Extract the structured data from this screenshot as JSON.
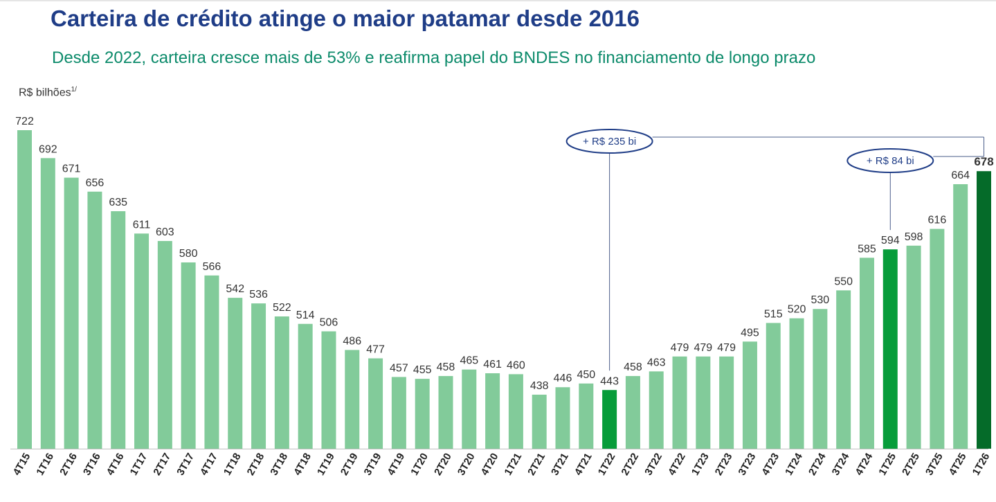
{
  "header": {
    "title": "Carteira de crédito atinge o maior patamar desde 2016",
    "subtitle": "Desde 2022, carteira cresce mais de 53% e reafirma papel do BNDES no financiamento de longo prazo",
    "unit_label": "R$ bilhões",
    "unit_footnote": "1/"
  },
  "colors": {
    "bar_default": "#82cb9a",
    "bar_highlight": "#079c3a",
    "bar_last": "#056b29",
    "annotation": "#1f3d87"
  },
  "chart_data": {
    "type": "bar",
    "title": "Carteira de crédito atinge o maior patamar desde 2016",
    "subtitle": "Desde 2022, carteira cresce mais de 53% e reafirma papel do BNDES no financiamento de longo prazo",
    "ylabel": "R$ bilhões",
    "xlabel": "",
    "categories": [
      "4T15",
      "1T16",
      "2T16",
      "3T16",
      "4T16",
      "1T17",
      "2T17",
      "3T17",
      "4T17",
      "1T18",
      "2T18",
      "3T18",
      "4T18",
      "1T19",
      "2T19",
      "3T19",
      "4T19",
      "1T20",
      "2T20",
      "3T20",
      "4T20",
      "1T21",
      "2T21",
      "3T21",
      "4T21",
      "1T22",
      "2T22",
      "3T22",
      "4T22",
      "1T23",
      "2T23",
      "3T23",
      "4T23",
      "1T24",
      "2T24",
      "3T24",
      "4T24",
      "1T25",
      "2T25",
      "3T25",
      "4T25",
      "1T26"
    ],
    "values": [
      722,
      692,
      671,
      656,
      635,
      611,
      603,
      580,
      566,
      542,
      536,
      522,
      514,
      506,
      486,
      477,
      457,
      455,
      458,
      465,
      461,
      460,
      438,
      446,
      450,
      443,
      458,
      463,
      479,
      479,
      479,
      495,
      515,
      520,
      530,
      550,
      585,
      594,
      598,
      616,
      664,
      678
    ],
    "highlighted": [
      "1T22",
      "1T25",
      "1T26"
    ],
    "ylim": [
      380,
      730
    ],
    "grid": false,
    "legend": "none",
    "annotations": [
      {
        "text": "+ R$ 235 bi",
        "from": "1T22",
        "to": "1T26"
      },
      {
        "text": "+ R$ 84 bi",
        "from": "1T25",
        "to": "1T26"
      }
    ]
  }
}
